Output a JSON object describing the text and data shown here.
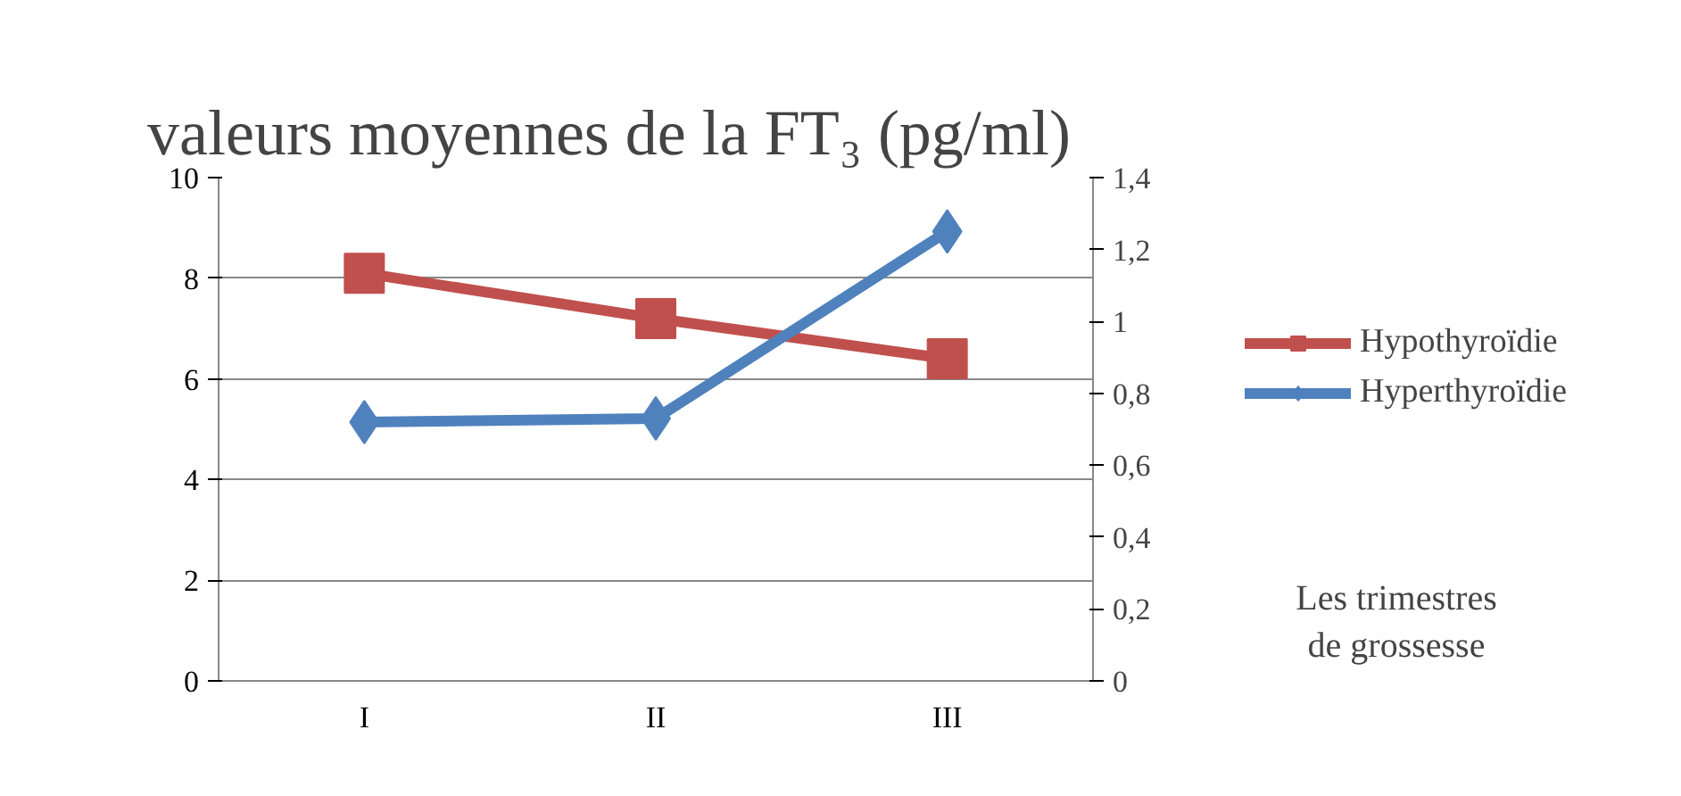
{
  "chart_data": {
    "type": "line",
    "title": "valeurs moyennes de la FT₃  (pg/ml)",
    "xlabel": "Les trimestres de grossesse",
    "categories": [
      "I",
      "II",
      "III"
    ],
    "series": [
      {
        "name": "Hypothyroïdie",
        "color": "#c0504d",
        "values": [
          8.1,
          7.2,
          6.4
        ],
        "marker": "square"
      },
      {
        "name": "Hyperthyroïdie",
        "color": "#4f81bd",
        "values": [
          0.72,
          0.73,
          1.25
        ],
        "marker": "diamond",
        "axis": "y2"
      }
    ],
    "ylim": [
      0,
      10
    ],
    "yticks": [
      0,
      2,
      4,
      6,
      8,
      10
    ],
    "y2lim": [
      0,
      1.4
    ],
    "y2ticks": [
      0,
      {
        "value": 0.2,
        "label": "0,2"
      },
      {
        "value": 0.4,
        "label": "0,4"
      },
      {
        "value": 0.6,
        "label": "0,6"
      },
      {
        "value": 0.8,
        "label": "0,8"
      },
      1,
      {
        "value": 1.2,
        "label": "1,2"
      },
      {
        "value": 1.4,
        "label": "1,4"
      }
    ],
    "grid": "y",
    "legend": "right",
    "line_style": "solid"
  }
}
